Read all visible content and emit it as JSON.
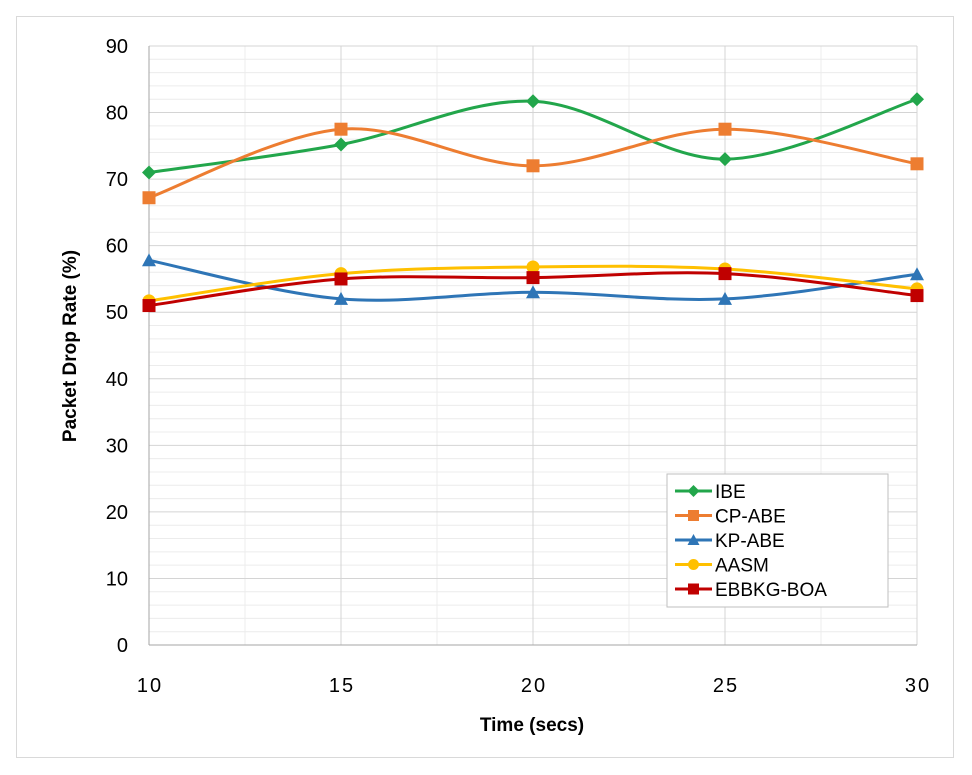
{
  "chart_data": {
    "type": "line",
    "title": "",
    "xlabel": "Time (secs)",
    "ylabel": "Packet Drop Rate (%)",
    "x": [
      10,
      15,
      20,
      25,
      30
    ],
    "x_ticks": [
      "10",
      "15",
      "20",
      "25",
      "30"
    ],
    "y_ticks": [
      "0",
      "10",
      "20",
      "30",
      "40",
      "50",
      "60",
      "70",
      "80",
      "90"
    ],
    "xlim": [
      10,
      30
    ],
    "ylim": [
      0,
      90
    ],
    "grid": true,
    "smooth": true,
    "legend_position": "bottom-right",
    "series": [
      {
        "name": "IBE",
        "values": [
          71,
          75.2,
          81.7,
          73,
          82
        ],
        "color": "#22a64b",
        "marker": "diamond"
      },
      {
        "name": "CP-ABE",
        "values": [
          67.2,
          77.5,
          72,
          77.5,
          72.3
        ],
        "color": "#ed7d31",
        "marker": "square"
      },
      {
        "name": "KP-ABE",
        "values": [
          57.8,
          52,
          53,
          52,
          55.7
        ],
        "color": "#2e75b6",
        "marker": "triangle"
      },
      {
        "name": "AASM",
        "values": [
          51.7,
          55.8,
          56.8,
          56.5,
          53.5
        ],
        "color": "#ffc000",
        "marker": "circle"
      },
      {
        "name": "EBBKG-BOA",
        "values": [
          51,
          55,
          55.2,
          55.8,
          52.5
        ],
        "color": "#c00000",
        "marker": "square"
      }
    ]
  }
}
